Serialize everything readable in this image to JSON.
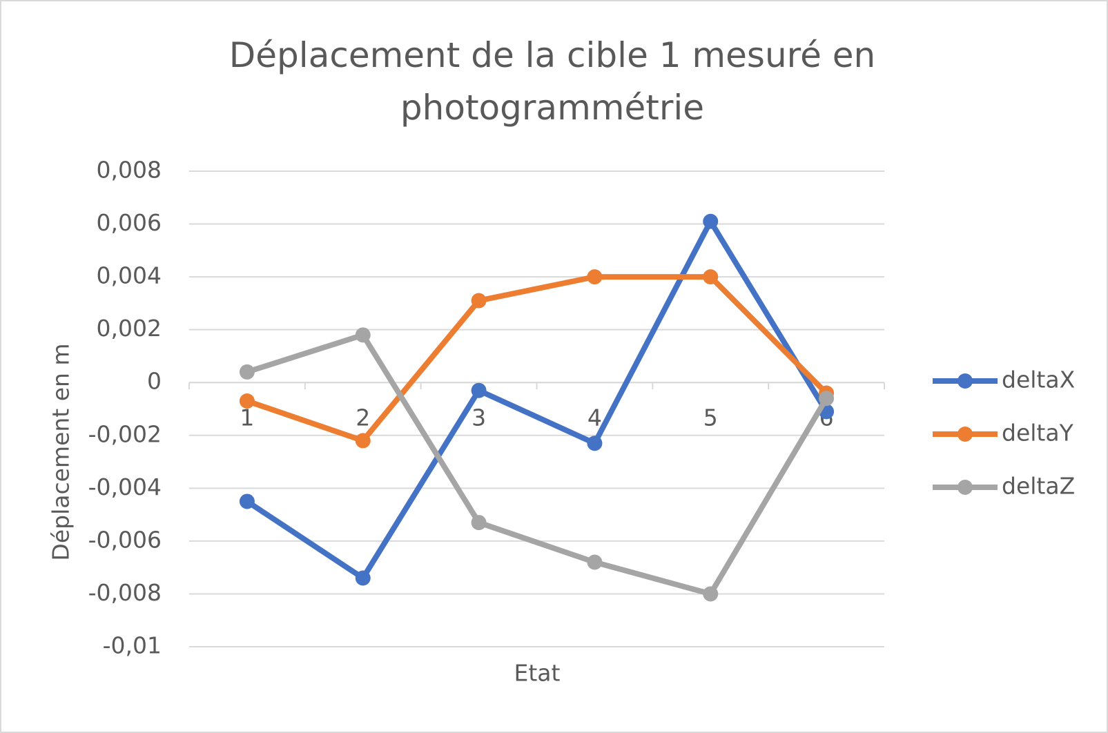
{
  "chart_data": {
    "type": "line",
    "title": "Déplacement de la cible 1 mesuré en photogrammétrie",
    "x_label": "Etat",
    "y_label": "Déplacement en m",
    "categories": [
      "1",
      "2",
      "3",
      "4",
      "5",
      "6"
    ],
    "series": [
      {
        "name": "deltaX",
        "color": "#4472c4",
        "values": [
          -0.0045,
          -0.0074,
          -0.0003,
          -0.0023,
          0.0061,
          -0.0011
        ]
      },
      {
        "name": "deltaY",
        "color": "#ed7d31",
        "values": [
          -0.0007,
          -0.0022,
          0.0031,
          0.004,
          0.004,
          -0.0004
        ]
      },
      {
        "name": "deltaZ",
        "color": "#a5a5a5",
        "values": [
          0.0004,
          0.0018,
          -0.0053,
          -0.0068,
          -0.008,
          -0.0006
        ]
      }
    ],
    "ylim": [
      -0.01,
      0.008
    ],
    "yticks": [
      {
        "value": -0.01,
        "label": "-0,01"
      },
      {
        "value": -0.008,
        "label": "-0,008"
      },
      {
        "value": -0.006,
        "label": "-0,006"
      },
      {
        "value": -0.004,
        "label": "-0,004"
      },
      {
        "value": -0.002,
        "label": "-0,002"
      },
      0,
      {
        "value": 0.002,
        "label": "0,002"
      },
      {
        "value": 0.004,
        "label": "0,004"
      },
      {
        "value": 0.006,
        "label": "0,006"
      },
      {
        "value": 0.008,
        "label": "0,008"
      }
    ],
    "grid": true,
    "legend": "right"
  }
}
